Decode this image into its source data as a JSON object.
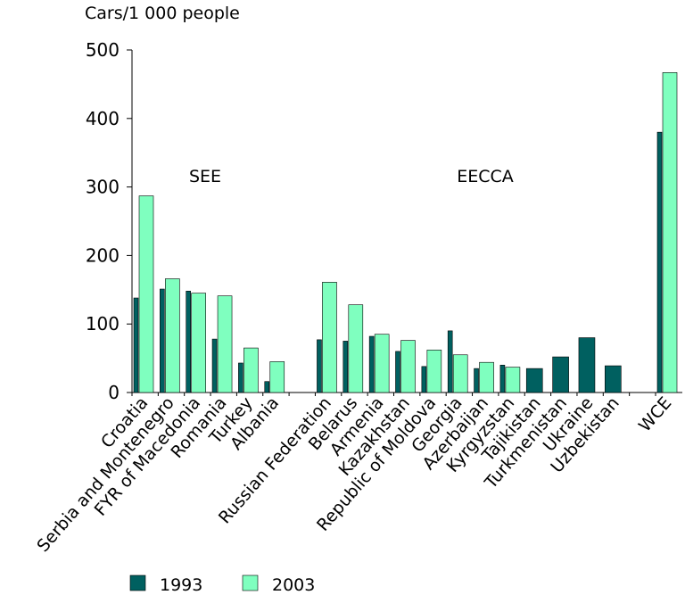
{
  "chart_data": {
    "type": "bar",
    "ylabel": "Cars/1 000 people",
    "ylim": [
      0,
      500
    ],
    "yticks": [
      0,
      100,
      200,
      300,
      400,
      500
    ],
    "categories": [
      "Croatia",
      "Serbia and Montenegro",
      "FYR of Macedonia",
      "Romania",
      "Turkey",
      "Albania",
      "",
      "Russian Federation",
      "Belarus",
      "Armenia",
      "Kazakhstan",
      "Republic of Moldova",
      "Georgia",
      "Azerbaijan",
      "Kyrgyzstan",
      "Tajikistan",
      "Turkmenistan",
      "Ukraine",
      "Uzbekistan",
      "",
      "WCE"
    ],
    "series": [
      {
        "name": "1993",
        "color": "#006060",
        "values": [
          138,
          151,
          148,
          78,
          43,
          16,
          null,
          77,
          75,
          82,
          60,
          38,
          90,
          35,
          40,
          35,
          52,
          80,
          39,
          null,
          380
        ]
      },
      {
        "name": "2003",
        "color": "#7fffbf",
        "values": [
          287,
          166,
          145,
          141,
          65,
          45,
          null,
          161,
          128,
          85,
          76,
          62,
          55,
          44,
          37,
          null,
          null,
          null,
          null,
          null,
          467
        ]
      }
    ],
    "annotations": [
      "SEE",
      "EECCA"
    ],
    "legend_position": "bottom",
    "grid": false
  }
}
